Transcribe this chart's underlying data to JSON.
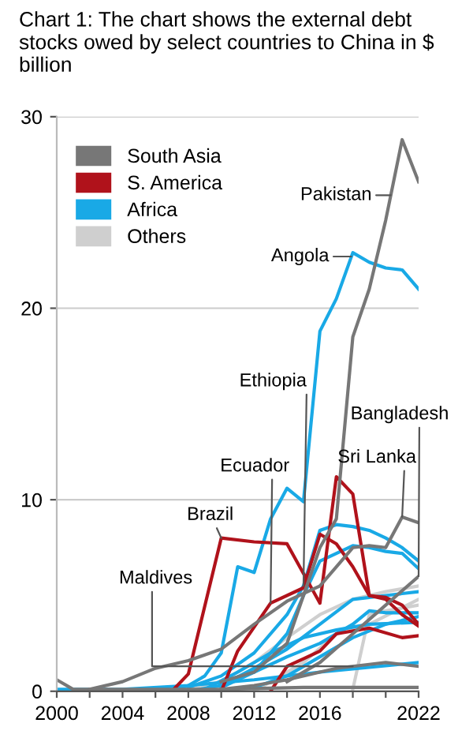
{
  "chart_data": {
    "type": "line",
    "title": "Chart 1: The chart shows the external debt stocks owed by select countries to China in $ billion",
    "xlim": [
      2000,
      2022
    ],
    "ylim": [
      0,
      30
    ],
    "yticks": [
      0,
      10,
      20,
      30
    ],
    "xticks": [
      2000,
      {
        "value": 2002,
        "label": null
      },
      2004,
      {
        "value": 2006,
        "label": null
      },
      2008,
      {
        "value": 2010,
        "label": null
      },
      2012,
      {
        "value": 2014,
        "label": null
      },
      2016,
      {
        "value": 2018,
        "label": null
      },
      {
        "value": 2020,
        "label": null
      },
      2022
    ],
    "grid": "y",
    "legend": "top left",
    "marker": "none",
    "line_style": "solid",
    "series": [
      {
        "name": "Others",
        "color": "#cfcfcf",
        "x": [
          2008,
          2010,
          2012,
          2014,
          2016,
          2018,
          2020,
          2022
        ],
        "values": [
          0.1,
          0.5,
          1.5,
          2.8,
          4,
          4.8,
          5.2,
          5.5
        ]
      },
      {
        "color": "#cfcfcf",
        "x": [
          2012,
          2015,
          2017,
          2019,
          2022
        ],
        "values": [
          0,
          1.5,
          3,
          3.5,
          4.8
        ]
      },
      {
        "color": "#cfcfcf",
        "x": [
          2018,
          2019,
          2020,
          2022
        ],
        "values": [
          0.1,
          4,
          4.2,
          4.5
        ]
      },
      {
        "name": "Africa",
        "color": "#19a9e6",
        "x": [
          2007,
          2008,
          2009,
          2010,
          2011,
          2012,
          2013,
          2014,
          2015,
          2016,
          2017,
          2018,
          2019,
          2020,
          2021,
          2022
        ],
        "values": [
          0,
          0.3,
          0.8,
          2,
          6.5,
          6.2,
          9,
          10.6,
          9.9,
          18.8,
          20.5,
          22.9,
          22.4,
          22.1,
          22,
          21
        ]
      },
      {
        "color": "#19a9e6",
        "x": [
          2000,
          2004,
          2008,
          2012,
          2016,
          2022
        ],
        "values": [
          0.1,
          0.1,
          0.3,
          0.6,
          1,
          1.5
        ]
      },
      {
        "color": "#19a9e6",
        "x": [
          2012,
          2014,
          2016,
          2018,
          2020,
          2022
        ],
        "values": [
          0.2,
          0.8,
          1.8,
          2.8,
          3.5,
          3.9
        ]
      },
      {
        "color": "#19a9e6",
        "x": [
          2009,
          2011,
          2013,
          2015,
          2017,
          2019,
          2022
        ],
        "values": [
          0.1,
          1,
          2,
          2.8,
          3.2,
          3.5,
          3.6
        ]
      },
      {
        "color": "#19a9e6",
        "x": [
          2010,
          2012,
          2014,
          2016,
          2018,
          2019,
          2020,
          2022
        ],
        "values": [
          0.5,
          1,
          1.8,
          2.5,
          3.5,
          4.2,
          4.1,
          4.1
        ]
      },
      {
        "color": "#19a9e6",
        "x": [
          2008,
          2010,
          2012,
          2014,
          2016,
          2018,
          2020,
          2022
        ],
        "values": [
          0,
          0.3,
          1.2,
          2.2,
          3.5,
          4.8,
          5,
          5.2
        ]
      },
      {
        "color": "#19a9e6",
        "x": [
          2010,
          2012,
          2014,
          2015,
          2016,
          2017,
          2018,
          2019,
          2020,
          2021,
          2022
        ],
        "values": [
          0.2,
          1,
          3,
          5,
          6.8,
          7.2,
          7.6,
          7.5,
          7.3,
          7.2,
          6.4
        ]
      },
      {
        "color": "#19a9e6",
        "x": [
          2008,
          2010,
          2012,
          2014,
          2015,
          2016,
          2017,
          2018,
          2019,
          2020,
          2021,
          2022
        ],
        "values": [
          0.2,
          0.8,
          2,
          4,
          5.5,
          8.4,
          8.7,
          8.6,
          8.4,
          8,
          7.5,
          6.8
        ]
      },
      {
        "name": "S. America",
        "color": "#b0121b",
        "x": [
          2007,
          2008,
          2010,
          2012,
          2014,
          2016,
          2017,
          2018,
          2019,
          2020,
          2021,
          2022
        ],
        "values": [
          0,
          0.9,
          8,
          7.8,
          7.7,
          4.6,
          11.2,
          10.3,
          5,
          4.8,
          4,
          3.4
        ]
      },
      {
        "color": "#b0121b",
        "x": [
          2013,
          2014,
          2015,
          2016,
          2017,
          2019,
          2021,
          2022
        ],
        "values": [
          0,
          1.3,
          1.7,
          2.1,
          3,
          3.3,
          2.8,
          2.9
        ]
      },
      {
        "color": "#b0121b",
        "x": [
          2010,
          2011,
          2013,
          2015,
          2016,
          2017,
          2018,
          2019,
          2020,
          2021,
          2022
        ],
        "values": [
          0,
          2.1,
          4.6,
          5.4,
          8.2,
          7.7,
          6.5,
          5,
          4.9,
          4.5,
          3.5
        ]
      },
      {
        "name": "South Asia",
        "color": "#777777",
        "x": [
          2010,
          2012,
          2014,
          2015,
          2016,
          2017,
          2018,
          2019,
          2020,
          2021,
          2022
        ],
        "values": [
          0.5,
          1,
          2.5,
          5,
          7.5,
          9,
          18.5,
          21,
          24.6,
          28.8,
          26.6
        ]
      },
      {
        "color": "#777777",
        "x": [
          2000,
          2001,
          2005,
          2010,
          2015,
          2022
        ],
        "values": [
          0.6,
          0.1,
          0.1,
          0.1,
          0.2,
          0.2
        ]
      },
      {
        "color": "#777777",
        "x": [
          2010,
          2012,
          2014,
          2016,
          2017,
          2018,
          2019,
          2020,
          2021,
          2022
        ],
        "values": [
          0.1,
          0.3,
          0.6,
          1,
          1.2,
          1.3,
          1.4,
          1.5,
          1.4,
          1.3
        ]
      },
      {
        "color": "#777777",
        "x": [
          2014,
          2016,
          2018,
          2020,
          2022
        ],
        "values": [
          0.5,
          1.5,
          3,
          4.5,
          6
        ]
      },
      {
        "color": "#777777",
        "x": [
          2002,
          2004,
          2006,
          2008,
          2010,
          2012,
          2014,
          2016,
          2017,
          2018,
          2019,
          2020,
          2021,
          2022
        ],
        "values": [
          0.1,
          0.5,
          1.2,
          1.6,
          2.2,
          3.5,
          4.7,
          5.5,
          6.5,
          7.5,
          7.6,
          7.5,
          9.1,
          8.8
        ]
      }
    ],
    "annotations": [
      {
        "text": "Pakistan",
        "x": 2020.3,
        "y": 25.9
      },
      {
        "text": "Angola",
        "x": 2017.9,
        "y": 22.7
      },
      {
        "text": "Ethiopia",
        "x": 2015,
        "y": 5.5
      },
      {
        "text": "Bangladesh",
        "x": 2022,
        "y": 6
      },
      {
        "text": "Ecuador",
        "x": 2013,
        "y": 4.6
      },
      {
        "text": "Sri Lanka",
        "x": 2021,
        "y": 9.1
      },
      {
        "text": "Brazil",
        "x": 2010,
        "y": 8
      },
      {
        "text": "Maldives",
        "x": 2018,
        "y": 1.3
      }
    ]
  }
}
